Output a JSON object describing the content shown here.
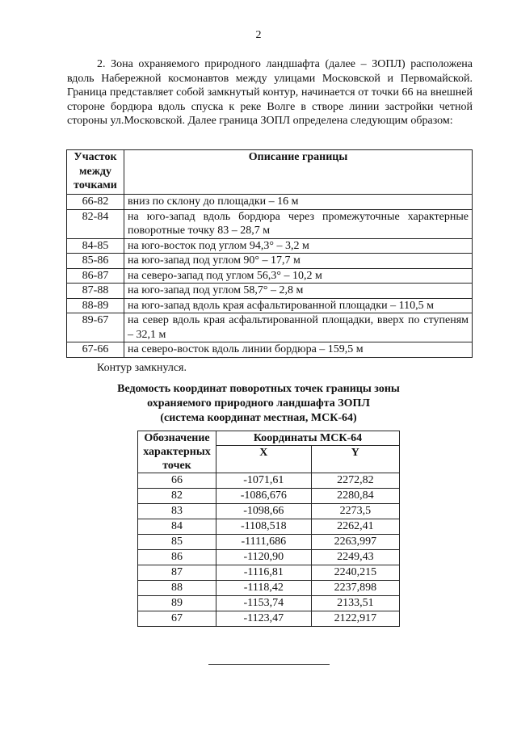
{
  "page_number": "2",
  "paragraph": "2. Зона охраняемого природного ландшафта (далее – ЗОПЛ) расположена вдоль Набережной космонавтов между улицами Московской и Первомайской. Граница представляет собой замкнутый контур, начинается от точки 66 на внешней стороне бордюра вдоль спуска к реке Волге в створе линии застройки четной стороны ул.Московской. Далее граница ЗОПЛ определена следующим образом:",
  "boundary_table": {
    "headers": [
      "Участок между точками",
      "Описание границы"
    ],
    "rows": [
      [
        "66-82",
        "вниз по склону до площадки – 16 м"
      ],
      [
        "82-84",
        "на юго-запад вдоль бордюра через промежуточные характерные поворотные точку 83 – 28,7 м"
      ],
      [
        "84-85",
        "на юго-восток под углом 94,3° – 3,2 м"
      ],
      [
        "85-86",
        "на юго-запад под углом 90° – 17,7 м"
      ],
      [
        "86-87",
        "на северо-запад под углом 56,3° – 10,2 м"
      ],
      [
        "87-88",
        "на юго-запад под углом 58,7° – 2,8 м"
      ],
      [
        "88-89",
        "на юго-запад вдоль края асфальтированной площадки – 110,5 м"
      ],
      [
        "89-67",
        "на север вдоль края асфальтированной площадки, вверх по ступеням – 32,1 м"
      ],
      [
        "67-66",
        "на северо-восток вдоль линии бордюра – 159,5 м"
      ]
    ]
  },
  "closed_text": "Контур замкнулся.",
  "coords_title": [
    "Ведомость координат поворотных точек границы зоны",
    "охраняемого природного ландшафта ЗОПЛ",
    "(система координат местная, МСК-64)"
  ],
  "coords_table": {
    "header_point": "Обозначение характерных точек",
    "header_group": "Координаты МСК-64",
    "header_x": "X",
    "header_y": "Y",
    "rows": [
      [
        "66",
        "-1071,61",
        "2272,82"
      ],
      [
        "82",
        "-1086,676",
        "2280,84"
      ],
      [
        "83",
        "-1098,66",
        "2273,5"
      ],
      [
        "84",
        "-1108,518",
        "2262,41"
      ],
      [
        "85",
        "-1111,686",
        "2263,997"
      ],
      [
        "86",
        "-1120,90",
        "2249,43"
      ],
      [
        "87",
        "-1116,81",
        "2240,215"
      ],
      [
        "88",
        "-1118,42",
        "2237,898"
      ],
      [
        "89",
        "-1153,74",
        "2133,51"
      ],
      [
        "67",
        "-1123,47",
        "2122,917"
      ]
    ]
  }
}
